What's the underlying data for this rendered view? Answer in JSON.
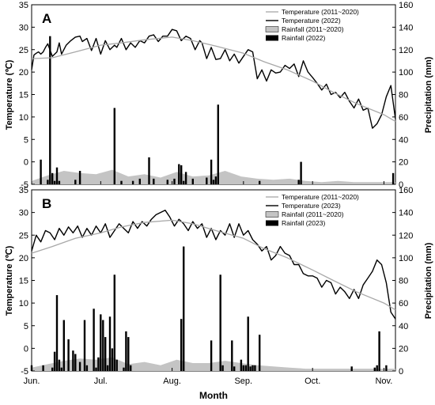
{
  "figure": {
    "x_axis_label": "Month",
    "month_labels": [
      "Jun.",
      "Jul.",
      "Aug.",
      "Sep.",
      "Oct.",
      "Nov."
    ]
  },
  "colors": {
    "temp_current": "#000000",
    "temp_avg": "#a8a8a8",
    "rain_current": "#000000",
    "rain_avg": "#c4c4c4"
  },
  "chart_data": [
    {
      "panel_label": "A",
      "type": "line",
      "ylabel": "Temperature (℃)",
      "y2label": "Precipitation (mm)",
      "ylim": [
        -5,
        35
      ],
      "y2lim": [
        0,
        160
      ],
      "xlim": [
        "2022-06-01",
        "2022-11-06"
      ],
      "legend_position": "top-right",
      "legend": [
        "Temperature (2011~2020)",
        "Temperature (2022)",
        "Rainfall (2011~2020)",
        "Rainfall (2022)"
      ],
      "series": [
        {
          "name": "Temperature (2022)",
          "kind": "temperature",
          "x": [
            "06-01",
            "06-02",
            "06-03",
            "06-04",
            "06-05",
            "06-06",
            "06-07",
            "06-08",
            "06-10",
            "06-12",
            "06-13",
            "06-14",
            "06-16",
            "06-18",
            "06-20",
            "06-22",
            "06-23",
            "06-25",
            "06-27",
            "06-29",
            "07-01",
            "07-03",
            "07-05",
            "07-07",
            "07-08",
            "07-10",
            "07-12",
            "07-14",
            "07-16",
            "07-18",
            "07-20",
            "07-22",
            "07-24",
            "07-26",
            "07-28",
            "07-30",
            "08-01",
            "08-03",
            "08-05",
            "08-07",
            "08-09",
            "08-11",
            "08-13",
            "08-14",
            "08-16",
            "08-18",
            "08-20",
            "08-22",
            "08-24",
            "08-26",
            "08-28",
            "08-30",
            "09-01",
            "09-03",
            "09-05",
            "09-07",
            "09-09",
            "09-11",
            "09-13",
            "09-15",
            "09-17",
            "09-19",
            "09-21",
            "09-23",
            "09-25",
            "09-27",
            "09-29",
            "10-01",
            "10-03",
            "10-05",
            "10-07",
            "10-09",
            "10-11",
            "10-13",
            "10-15",
            "10-17",
            "10-19",
            "10-21",
            "10-23",
            "10-25",
            "10-27",
            "10-29",
            "10-31",
            "11-02",
            "11-04",
            "11-06"
          ],
          "values": [
            20.5,
            23.8,
            24.2,
            24.5,
            24.0,
            24.5,
            25.5,
            26.3,
            23.5,
            24.5,
            26.5,
            24.0,
            26.0,
            27.0,
            27.8,
            28.0,
            26.8,
            27.5,
            24.8,
            27.5,
            24.0,
            27.0,
            25.0,
            26.0,
            25.5,
            27.5,
            25.0,
            26.5,
            25.5,
            27.0,
            26.5,
            28.0,
            28.3,
            26.8,
            28.0,
            28.0,
            29.5,
            29.2,
            27.0,
            28.0,
            27.5,
            25.0,
            27.0,
            26.5,
            23.0,
            25.5,
            22.8,
            23.0,
            25.0,
            22.5,
            24.0,
            22.0,
            23.5,
            25.0,
            24.5,
            18.5,
            20.5,
            18.0,
            20.5,
            19.8,
            20.0,
            21.5,
            20.8,
            21.8,
            19.0,
            22.5,
            20.0,
            18.8,
            17.5,
            16.0,
            17.3,
            15.0,
            15.5,
            14.3,
            15.5,
            13.5,
            12.0,
            14.0,
            11.5,
            12.0,
            7.5,
            8.5,
            10.5,
            14.5,
            17.0,
            9.5
          ]
        },
        {
          "name": "Temperature (2011~2020)",
          "kind": "temperature",
          "x": [
            "06-01",
            "06-10",
            "06-20",
            "07-01",
            "07-10",
            "07-20",
            "08-01",
            "08-10",
            "08-20",
            "09-01",
            "09-10",
            "09-20",
            "10-01",
            "10-10",
            "10-20",
            "11-01",
            "11-06"
          ],
          "values": [
            23.0,
            23.2,
            24.5,
            26.0,
            26.5,
            27.2,
            27.8,
            27.0,
            25.8,
            24.2,
            22.3,
            20.5,
            18.0,
            15.5,
            13.0,
            10.5,
            9.0
          ]
        },
        {
          "name": "Rainfall (2022)",
          "kind": "rain_bars",
          "x": [
            "06-05",
            "06-08",
            "06-09",
            "06-10",
            "06-11",
            "06-12",
            "06-13",
            "06-20",
            "06-22",
            "07-07",
            "07-10",
            "07-15",
            "07-18",
            "07-22",
            "07-24",
            "07-30",
            "08-02",
            "08-04",
            "08-05",
            "08-06",
            "08-07",
            "08-10",
            "08-16",
            "08-18",
            "08-19",
            "08-20",
            "08-21",
            "09-08",
            "09-25",
            "09-26",
            "11-05"
          ],
          "values": [
            22,
            4,
            132,
            10,
            3,
            15,
            3,
            4,
            12,
            68,
            3,
            3,
            5,
            24,
            5,
            4,
            5,
            18,
            17,
            3,
            11,
            5,
            6,
            22,
            4,
            7,
            71,
            3,
            4,
            20,
            10
          ]
        },
        {
          "name": "Rainfall (2011~2020)",
          "kind": "rain_area",
          "x": [
            "06-01",
            "06-08",
            "06-15",
            "06-22",
            "06-29",
            "07-06",
            "07-13",
            "07-20",
            "07-27",
            "08-03",
            "08-10",
            "08-17",
            "08-24",
            "08-31",
            "09-07",
            "09-14",
            "09-21",
            "09-28",
            "10-05",
            "10-12",
            "10-19",
            "10-26",
            "11-02",
            "11-06"
          ],
          "values": [
            3,
            8,
            12,
            10,
            9,
            13,
            7,
            9,
            6,
            11,
            7,
            8,
            12,
            7,
            5,
            4,
            5,
            3,
            2,
            3,
            2,
            2,
            2,
            2
          ]
        }
      ]
    },
    {
      "panel_label": "B",
      "type": "line",
      "ylabel": "Temperature (℃)",
      "y2label": "Precipitation (mm)",
      "ylim": [
        -5,
        35
      ],
      "y2lim": [
        0,
        160
      ],
      "xlim": [
        "2023-06-01",
        "2023-11-06"
      ],
      "legend_position": "top-right",
      "legend": [
        "Temperature (2011~2020)",
        "Temperature (2023)",
        "Rainfall (2011~2020)",
        "Rainfall (2023)"
      ],
      "series": [
        {
          "name": "Temperature (2023)",
          "kind": "temperature",
          "x": [
            "06-01",
            "06-03",
            "06-05",
            "06-07",
            "06-09",
            "06-11",
            "06-13",
            "06-15",
            "06-17",
            "06-19",
            "06-21",
            "06-23",
            "06-25",
            "06-27",
            "06-29",
            "07-01",
            "07-03",
            "07-05",
            "07-07",
            "07-09",
            "07-11",
            "07-13",
            "07-15",
            "07-17",
            "07-19",
            "07-21",
            "07-23",
            "07-25",
            "07-27",
            "07-29",
            "07-31",
            "08-02",
            "08-04",
            "08-06",
            "08-08",
            "08-10",
            "08-12",
            "08-14",
            "08-16",
            "08-18",
            "08-20",
            "08-22",
            "08-24",
            "08-26",
            "08-28",
            "08-30",
            "09-01",
            "09-03",
            "09-05",
            "09-07",
            "09-09",
            "09-11",
            "09-13",
            "09-15",
            "09-17",
            "09-19",
            "09-21",
            "09-23",
            "09-25",
            "09-27",
            "09-29",
            "10-01",
            "10-03",
            "10-05",
            "10-07",
            "10-09",
            "10-11",
            "10-13",
            "10-15",
            "10-17",
            "10-19",
            "10-21",
            "10-23",
            "10-25",
            "10-27",
            "10-29",
            "10-31",
            "11-02",
            "11-04",
            "11-06"
          ],
          "values": [
            21.5,
            25.0,
            23.5,
            26.0,
            25.5,
            24.0,
            26.5,
            25.0,
            26.8,
            25.5,
            27.0,
            24.5,
            26.5,
            25.0,
            27.0,
            25.5,
            27.5,
            24.5,
            26.0,
            27.5,
            26.5,
            25.5,
            28.0,
            26.5,
            28.0,
            27.0,
            28.5,
            29.5,
            30.0,
            30.5,
            29.0,
            27.0,
            28.5,
            27.5,
            26.0,
            28.0,
            26.5,
            27.5,
            24.5,
            26.5,
            24.0,
            26.0,
            25.0,
            27.5,
            24.5,
            27.5,
            25.0,
            26.0,
            24.0,
            23.0,
            21.5,
            22.5,
            19.5,
            20.5,
            22.5,
            21.0,
            20.5,
            18.5,
            18.5,
            16.5,
            16.0,
            16.0,
            15.5,
            13.5,
            15.0,
            14.5,
            12.0,
            13.5,
            12.5,
            11.0,
            13.0,
            11.0,
            14.0,
            15.5,
            17.0,
            19.5,
            18.5,
            14.5,
            8.0,
            6.5
          ]
        },
        {
          "name": "Temperature (2011~2020)",
          "kind": "temperature",
          "x": [
            "06-01",
            "06-10",
            "06-20",
            "07-01",
            "07-10",
            "07-20",
            "08-01",
            "08-10",
            "08-20",
            "09-01",
            "09-10",
            "09-20",
            "10-01",
            "10-10",
            "10-20",
            "11-01",
            "11-06"
          ],
          "values": [
            21.0,
            22.5,
            24.3,
            25.5,
            26.8,
            27.8,
            28.3,
            27.5,
            26.0,
            24.3,
            22.0,
            20.0,
            17.3,
            15.0,
            12.5,
            10.0,
            8.5
          ]
        },
        {
          "name": "Rainfall (2023)",
          "kind": "rain_bars",
          "x": [
            "06-01",
            "06-06",
            "06-10",
            "06-11",
            "06-12",
            "06-13",
            "06-14",
            "06-15",
            "06-17",
            "06-19",
            "06-20",
            "06-22",
            "06-24",
            "06-25",
            "06-28",
            "06-29",
            "06-30",
            "07-01",
            "07-02",
            "07-03",
            "07-04",
            "07-05",
            "07-06",
            "07-07",
            "07-08",
            "07-11",
            "07-12",
            "07-13",
            "07-14",
            "08-05",
            "08-06",
            "08-18",
            "08-22",
            "08-23",
            "08-27",
            "08-28",
            "08-31",
            "09-01",
            "09-02",
            "09-03",
            "09-04",
            "09-05",
            "09-06",
            "09-08",
            "10-18",
            "10-28",
            "10-29",
            "10-30",
            "11-02"
          ],
          "values": [
            5,
            5,
            3,
            17,
            67,
            10,
            3,
            45,
            28,
            18,
            15,
            8,
            45,
            5,
            55,
            3,
            12,
            50,
            45,
            30,
            5,
            48,
            20,
            85,
            10,
            3,
            35,
            30,
            5,
            46,
            110,
            27,
            85,
            5,
            27,
            4,
            10,
            5,
            5,
            48,
            4,
            5,
            5,
            32,
            4,
            3,
            5,
            35,
            5
          ]
        },
        {
          "name": "Rainfall (2011~2020)",
          "kind": "rain_area",
          "x": [
            "06-01",
            "06-08",
            "06-15",
            "06-22",
            "06-29",
            "07-06",
            "07-13",
            "07-20",
            "07-27",
            "08-03",
            "08-10",
            "08-17",
            "08-24",
            "08-31",
            "09-07",
            "09-14",
            "09-21",
            "09-28",
            "10-05",
            "10-12",
            "10-19",
            "10-26",
            "11-02",
            "11-06"
          ],
          "values": [
            3,
            6,
            9,
            11,
            10,
            12,
            6,
            8,
            5,
            10,
            7,
            7,
            9,
            7,
            5,
            4,
            3,
            2,
            2,
            2,
            2,
            2,
            2,
            2
          ]
        }
      ]
    }
  ]
}
